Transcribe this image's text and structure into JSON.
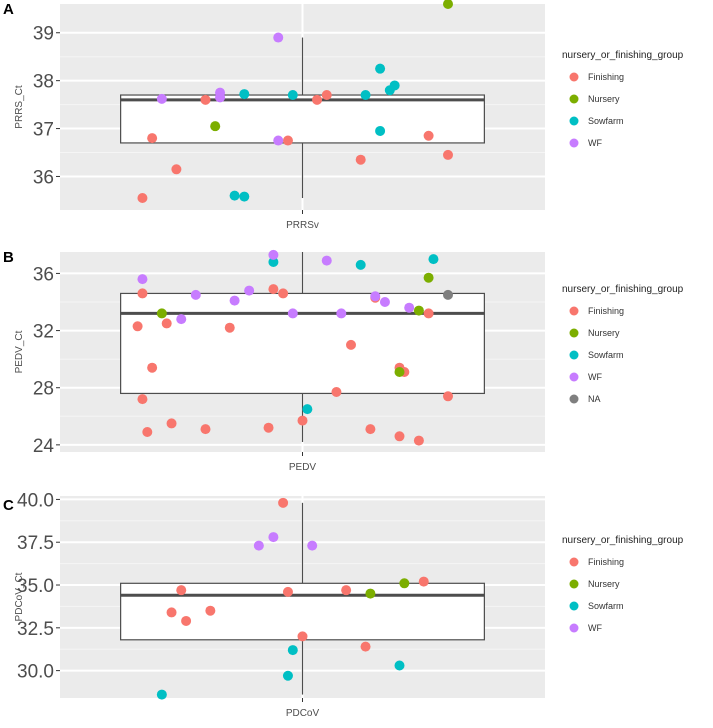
{
  "colors": {
    "panel_bg": "#ebebeb",
    "grid_major": "#ffffff",
    "grid_minor": "#f5f5f5",
    "box_line": "#4d4d4d",
    "Finishing": "#f8766d",
    "Nursery": "#7cae00",
    "Sowfarm": "#00bfc4",
    "WF": "#c77cff",
    "NA": "#7f7f7f"
  },
  "chart_data": [
    {
      "panel": "A",
      "type": "scatter",
      "overlay": "boxplot",
      "ylabel": "PRRS_Ct",
      "xtick": "PRRSv",
      "ylim": [
        35.3,
        39.6
      ],
      "yticks": [
        36,
        37,
        38,
        39
      ],
      "ytick_labels": [
        "36",
        "37",
        "38",
        "39"
      ],
      "grid": true,
      "box": {
        "whisker_low": 35.55,
        "q1": 36.7,
        "median": 37.6,
        "q3": 37.7,
        "whisker_high": 38.9
      },
      "legend": {
        "title": "nursery_or_finishing_group",
        "position": "right",
        "entries": [
          {
            "name": "Finishing",
            "color": "Finishing"
          },
          {
            "name": "Nursery",
            "color": "Nursery"
          },
          {
            "name": "Sowfarm",
            "color": "Sowfarm"
          },
          {
            "name": "WF",
            "color": "WF"
          }
        ]
      },
      "points": [
        {
          "group": "Finishing",
          "jitter": -0.33,
          "y": 35.55
        },
        {
          "group": "Finishing",
          "jitter": -0.26,
          "y": 36.15
        },
        {
          "group": "Finishing",
          "jitter": -0.31,
          "y": 36.8
        },
        {
          "group": "Finishing",
          "jitter": -0.2,
          "y": 37.6
        },
        {
          "group": "Finishing",
          "jitter": 0.03,
          "y": 37.6
        },
        {
          "group": "Finishing",
          "jitter": 0.05,
          "y": 37.7
        },
        {
          "group": "Finishing",
          "jitter": -0.03,
          "y": 36.75
        },
        {
          "group": "Finishing",
          "jitter": 0.12,
          "y": 36.35
        },
        {
          "group": "Finishing",
          "jitter": 0.26,
          "y": 36.85
        },
        {
          "group": "Finishing",
          "jitter": 0.3,
          "y": 36.45
        },
        {
          "group": "Nursery",
          "jitter": -0.18,
          "y": 37.05
        },
        {
          "group": "Nursery",
          "jitter": 0.3,
          "y": 39.6
        },
        {
          "group": "Sowfarm",
          "jitter": -0.14,
          "y": 35.6
        },
        {
          "group": "Sowfarm",
          "jitter": -0.12,
          "y": 35.58
        },
        {
          "group": "Sowfarm",
          "jitter": -0.12,
          "y": 37.72
        },
        {
          "group": "Sowfarm",
          "jitter": -0.02,
          "y": 37.7
        },
        {
          "group": "Sowfarm",
          "jitter": 0.13,
          "y": 37.7
        },
        {
          "group": "Sowfarm",
          "jitter": 0.16,
          "y": 38.25
        },
        {
          "group": "Sowfarm",
          "jitter": 0.18,
          "y": 37.8
        },
        {
          "group": "Sowfarm",
          "jitter": 0.19,
          "y": 37.9
        },
        {
          "group": "Sowfarm",
          "jitter": 0.16,
          "y": 36.95
        },
        {
          "group": "WF",
          "jitter": -0.29,
          "y": 37.62
        },
        {
          "group": "WF",
          "jitter": -0.17,
          "y": 37.65
        },
        {
          "group": "WF",
          "jitter": -0.17,
          "y": 37.75
        },
        {
          "group": "WF",
          "jitter": -0.05,
          "y": 38.9
        },
        {
          "group": "WF",
          "jitter": -0.05,
          "y": 36.75
        }
      ]
    },
    {
      "panel": "B",
      "type": "scatter",
      "overlay": "boxplot",
      "ylabel": "PEDV_Ct",
      "xtick": "PEDV",
      "ylim": [
        23.5,
        37.5
      ],
      "yticks": [
        24,
        28,
        32,
        36
      ],
      "ytick_labels": [
        "24",
        "28",
        "32",
        "36"
      ],
      "grid": true,
      "box": {
        "whisker_low": 24.2,
        "q1": 27.6,
        "median": 33.2,
        "q3": 34.6,
        "whisker_high": 37.5
      },
      "legend": {
        "title": "nursery_or_finishing_group",
        "position": "right",
        "entries": [
          {
            "name": "Finishing",
            "color": "Finishing"
          },
          {
            "name": "Nursery",
            "color": "Nursery"
          },
          {
            "name": "Sowfarm",
            "color": "Sowfarm"
          },
          {
            "name": "WF",
            "color": "WF"
          },
          {
            "name": "NA",
            "color": "NA"
          }
        ]
      },
      "points": [
        {
          "group": "Finishing",
          "jitter": -0.32,
          "y": 24.9
        },
        {
          "group": "Finishing",
          "jitter": -0.27,
          "y": 25.5
        },
        {
          "group": "Finishing",
          "jitter": -0.2,
          "y": 25.1
        },
        {
          "group": "Finishing",
          "jitter": -0.33,
          "y": 27.2
        },
        {
          "group": "Finishing",
          "jitter": -0.31,
          "y": 29.4
        },
        {
          "group": "Finishing",
          "jitter": -0.34,
          "y": 32.3
        },
        {
          "group": "Finishing",
          "jitter": -0.28,
          "y": 32.5
        },
        {
          "group": "Finishing",
          "jitter": -0.15,
          "y": 32.2
        },
        {
          "group": "Finishing",
          "jitter": -0.33,
          "y": 34.6
        },
        {
          "group": "Finishing",
          "jitter": -0.06,
          "y": 34.9
        },
        {
          "group": "Finishing",
          "jitter": -0.04,
          "y": 34.6
        },
        {
          "group": "Finishing",
          "jitter": -0.07,
          "y": 25.2
        },
        {
          "group": "Finishing",
          "jitter": 0.0,
          "y": 25.7
        },
        {
          "group": "Finishing",
          "jitter": 0.07,
          "y": 27.7
        },
        {
          "group": "Finishing",
          "jitter": 0.1,
          "y": 31.0
        },
        {
          "group": "Finishing",
          "jitter": 0.14,
          "y": 25.1
        },
        {
          "group": "Finishing",
          "jitter": 0.2,
          "y": 24.6
        },
        {
          "group": "Finishing",
          "jitter": 0.24,
          "y": 24.3
        },
        {
          "group": "Finishing",
          "jitter": 0.2,
          "y": 29.4
        },
        {
          "group": "Finishing",
          "jitter": 0.21,
          "y": 29.1
        },
        {
          "group": "Finishing",
          "jitter": 0.26,
          "y": 33.2
        },
        {
          "group": "Finishing",
          "jitter": 0.3,
          "y": 27.4
        },
        {
          "group": "Finishing",
          "jitter": 0.15,
          "y": 34.3
        },
        {
          "group": "Nursery",
          "jitter": -0.29,
          "y": 33.2
        },
        {
          "group": "Nursery",
          "jitter": 0.2,
          "y": 29.1
        },
        {
          "group": "Nursery",
          "jitter": 0.26,
          "y": 35.7
        },
        {
          "group": "Nursery",
          "jitter": 0.24,
          "y": 33.4
        },
        {
          "group": "Sowfarm",
          "jitter": -0.06,
          "y": 36.8
        },
        {
          "group": "Sowfarm",
          "jitter": 0.12,
          "y": 36.6
        },
        {
          "group": "Sowfarm",
          "jitter": 0.27,
          "y": 37.0
        },
        {
          "group": "Sowfarm",
          "jitter": 0.01,
          "y": 26.5
        },
        {
          "group": "WF",
          "jitter": -0.33,
          "y": 35.6
        },
        {
          "group": "WF",
          "jitter": -0.22,
          "y": 34.5
        },
        {
          "group": "WF",
          "jitter": -0.25,
          "y": 32.8
        },
        {
          "group": "WF",
          "jitter": -0.14,
          "y": 34.1
        },
        {
          "group": "WF",
          "jitter": -0.11,
          "y": 34.8
        },
        {
          "group": "WF",
          "jitter": -0.06,
          "y": 37.3
        },
        {
          "group": "WF",
          "jitter": -0.02,
          "y": 33.2
        },
        {
          "group": "WF",
          "jitter": 0.05,
          "y": 36.9
        },
        {
          "group": "WF",
          "jitter": 0.08,
          "y": 33.2
        },
        {
          "group": "WF",
          "jitter": 0.15,
          "y": 34.4
        },
        {
          "group": "WF",
          "jitter": 0.17,
          "y": 34.0
        },
        {
          "group": "WF",
          "jitter": 0.22,
          "y": 33.6
        },
        {
          "group": "NA",
          "jitter": 0.3,
          "y": 34.5
        }
      ]
    },
    {
      "panel": "C",
      "type": "scatter",
      "overlay": "boxplot",
      "ylabel": "PDCoV_Ct",
      "xtick": "PDCoV",
      "ylim": [
        28.4,
        40.2
      ],
      "yticks": [
        30.0,
        32.5,
        35.0,
        37.5,
        40.0
      ],
      "ytick_labels": [
        "30.0",
        "32.5",
        "35.0",
        "37.5",
        "40.0"
      ],
      "grid": true,
      "box": {
        "whisker_low": 28.6,
        "q1": 31.8,
        "median": 34.4,
        "q3": 35.1,
        "whisker_high": 39.8
      },
      "legend": {
        "title": "nursery_or_finishing_group",
        "position": "right",
        "entries": [
          {
            "name": "Finishing",
            "color": "Finishing"
          },
          {
            "name": "Nursery",
            "color": "Nursery"
          },
          {
            "name": "Sowfarm",
            "color": "Sowfarm"
          },
          {
            "name": "WF",
            "color": "WF"
          }
        ]
      },
      "points": [
        {
          "group": "Finishing",
          "jitter": -0.25,
          "y": 34.7
        },
        {
          "group": "Finishing",
          "jitter": -0.27,
          "y": 33.4
        },
        {
          "group": "Finishing",
          "jitter": -0.24,
          "y": 32.9
        },
        {
          "group": "Finishing",
          "jitter": -0.19,
          "y": 33.5
        },
        {
          "group": "Finishing",
          "jitter": -0.03,
          "y": 34.6
        },
        {
          "group": "Finishing",
          "jitter": -0.04,
          "y": 39.8
        },
        {
          "group": "Finishing",
          "jitter": 0.0,
          "y": 32.0
        },
        {
          "group": "Finishing",
          "jitter": 0.09,
          "y": 34.7
        },
        {
          "group": "Finishing",
          "jitter": 0.13,
          "y": 31.4
        },
        {
          "group": "Finishing",
          "jitter": 0.25,
          "y": 35.2
        },
        {
          "group": "Nursery",
          "jitter": 0.14,
          "y": 34.5
        },
        {
          "group": "Nursery",
          "jitter": 0.21,
          "y": 35.1
        },
        {
          "group": "Sowfarm",
          "jitter": -0.29,
          "y": 28.6
        },
        {
          "group": "Sowfarm",
          "jitter": -0.02,
          "y": 31.2
        },
        {
          "group": "Sowfarm",
          "jitter": -0.03,
          "y": 29.7
        },
        {
          "group": "Sowfarm",
          "jitter": 0.2,
          "y": 30.3
        },
        {
          "group": "WF",
          "jitter": -0.09,
          "y": 37.3
        },
        {
          "group": "WF",
          "jitter": -0.06,
          "y": 37.8
        },
        {
          "group": "WF",
          "jitter": 0.02,
          "y": 37.3
        }
      ]
    }
  ]
}
